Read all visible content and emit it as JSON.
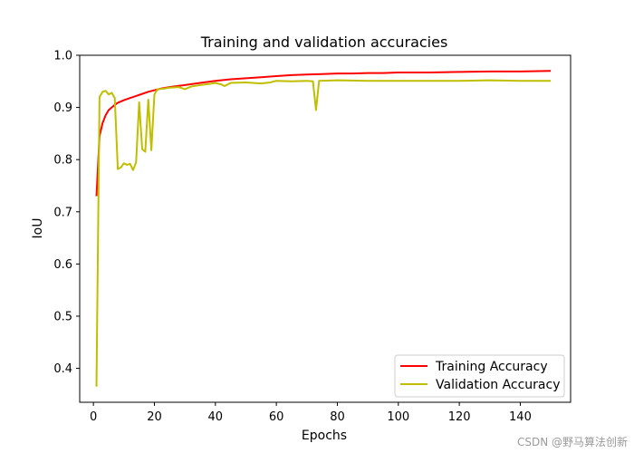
{
  "chart_data": {
    "type": "line",
    "title": "Training and validation accuracies",
    "xlabel": "Epochs",
    "ylabel": "IoU",
    "xlim": [
      -4.5,
      156.5
    ],
    "ylim": [
      0.335,
      1.0
    ],
    "xticks": [
      0,
      20,
      40,
      60,
      80,
      100,
      120,
      140
    ],
    "yticks": [
      0.4,
      0.5,
      0.6,
      0.7,
      0.8,
      0.9,
      1.0
    ],
    "xtick_labels": [
      "0",
      "20",
      "40",
      "60",
      "80",
      "100",
      "120",
      "140"
    ],
    "ytick_labels": [
      "0.4",
      "0.5",
      "0.6",
      "0.7",
      "0.8",
      "0.9",
      "1.0"
    ],
    "grid": false,
    "legend_position": "lower-right",
    "series": [
      {
        "name": "Training Accuracy",
        "color": "#ff0000",
        "points": [
          [
            1,
            0.73
          ],
          [
            2,
            0.845
          ],
          [
            3,
            0.87
          ],
          [
            4,
            0.885
          ],
          [
            5,
            0.895
          ],
          [
            6,
            0.9
          ],
          [
            7,
            0.905
          ],
          [
            8,
            0.909
          ],
          [
            10,
            0.914
          ],
          [
            12,
            0.918
          ],
          [
            14,
            0.922
          ],
          [
            16,
            0.926
          ],
          [
            18,
            0.93
          ],
          [
            20,
            0.933
          ],
          [
            22,
            0.936
          ],
          [
            25,
            0.939
          ],
          [
            30,
            0.943
          ],
          [
            35,
            0.947
          ],
          [
            40,
            0.951
          ],
          [
            45,
            0.954
          ],
          [
            50,
            0.956
          ],
          [
            55,
            0.958
          ],
          [
            60,
            0.96
          ],
          [
            65,
            0.962
          ],
          [
            70,
            0.963
          ],
          [
            75,
            0.964
          ],
          [
            80,
            0.965
          ],
          [
            85,
            0.965
          ],
          [
            90,
            0.966
          ],
          [
            95,
            0.966
          ],
          [
            100,
            0.967
          ],
          [
            110,
            0.967
          ],
          [
            120,
            0.968
          ],
          [
            130,
            0.969
          ],
          [
            140,
            0.969
          ],
          [
            150,
            0.97
          ]
        ]
      },
      {
        "name": "Validation Accuracy",
        "color": "#bfbf00",
        "points": [
          [
            1,
            0.365
          ],
          [
            2,
            0.92
          ],
          [
            3,
            0.93
          ],
          [
            4,
            0.932
          ],
          [
            5,
            0.925
          ],
          [
            6,
            0.928
          ],
          [
            7,
            0.918
          ],
          [
            8,
            0.782
          ],
          [
            9,
            0.785
          ],
          [
            10,
            0.793
          ],
          [
            11,
            0.79
          ],
          [
            12,
            0.792
          ],
          [
            13,
            0.78
          ],
          [
            14,
            0.795
          ],
          [
            15,
            0.91
          ],
          [
            16,
            0.82
          ],
          [
            17,
            0.815
          ],
          [
            18,
            0.915
          ],
          [
            19,
            0.818
          ],
          [
            20,
            0.925
          ],
          [
            21,
            0.935
          ],
          [
            23,
            0.936
          ],
          [
            25,
            0.938
          ],
          [
            28,
            0.939
          ],
          [
            30,
            0.935
          ],
          [
            32,
            0.94
          ],
          [
            35,
            0.943
          ],
          [
            38,
            0.945
          ],
          [
            40,
            0.947
          ],
          [
            42,
            0.944
          ],
          [
            43,
            0.941
          ],
          [
            45,
            0.947
          ],
          [
            50,
            0.948
          ],
          [
            55,
            0.946
          ],
          [
            58,
            0.948
          ],
          [
            60,
            0.951
          ],
          [
            65,
            0.95
          ],
          [
            70,
            0.951
          ],
          [
            72,
            0.95
          ],
          [
            73,
            0.895
          ],
          [
            74,
            0.951
          ],
          [
            80,
            0.952
          ],
          [
            90,
            0.951
          ],
          [
            100,
            0.951
          ],
          [
            110,
            0.951
          ],
          [
            120,
            0.951
          ],
          [
            130,
            0.952
          ],
          [
            140,
            0.951
          ],
          [
            150,
            0.951
          ]
        ]
      }
    ]
  },
  "watermark": "CSDN @野马算法创新"
}
